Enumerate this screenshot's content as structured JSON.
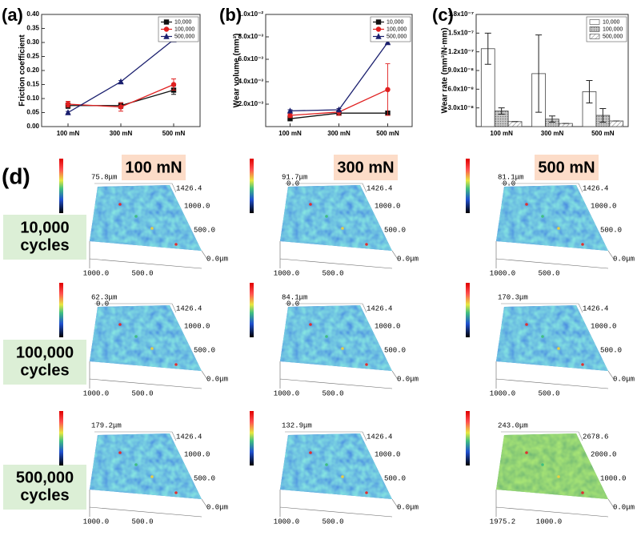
{
  "chart_data": [
    {
      "type": "line",
      "label": "(a)",
      "y_label": "Friction coefficient",
      "categories": [
        "100 mN",
        "300 mN",
        "500 mN"
      ],
      "ylim": [
        0,
        0.4
      ],
      "yticks": [
        {
          "value": 0,
          "label": "0.00"
        },
        {
          "value": 0.05,
          "label": "0.05"
        },
        {
          "value": 0.1,
          "label": "0.10"
        },
        {
          "value": 0.15,
          "label": "0.15"
        },
        {
          "value": 0.2,
          "label": "0.20"
        },
        {
          "value": 0.25,
          "label": "0.25"
        },
        {
          "value": 0.3,
          "label": "0.30"
        },
        {
          "value": 0.35,
          "label": "0.35"
        },
        {
          "value": 0.4,
          "label": "0.40"
        }
      ],
      "legend": "upper right",
      "series": [
        {
          "name": "10,000",
          "color": "#111111",
          "marker": "square",
          "values": [
            0.075,
            0.075,
            0.13
          ],
          "errors": [
            0.01,
            0.01,
            0.015
          ]
        },
        {
          "name": "100,000",
          "color": "#e02020",
          "marker": "circle",
          "values": [
            0.08,
            0.07,
            0.15
          ],
          "errors": [
            0.01,
            0.015,
            0.02
          ]
        },
        {
          "name": "500,000",
          "color": "#1a1f6e",
          "marker": "triangle",
          "values": [
            0.05,
            0.16,
            0.31
          ],
          "errors": [
            0.004,
            0.004,
            0.004
          ]
        }
      ]
    },
    {
      "type": "line",
      "label": "(b)",
      "y_label": "Wear volume (mm³)",
      "categories": [
        "100 mN",
        "300 mN",
        "500 mN"
      ],
      "ylim": [
        0,
        0.01
      ],
      "yticks": [
        {
          "value": 0.002,
          "label": "2.0x10⁻³"
        },
        {
          "value": 0.004,
          "label": "4.0x10⁻³"
        },
        {
          "value": 0.006,
          "label": "6.0x10⁻³"
        },
        {
          "value": 0.008,
          "label": "8.0x10⁻³"
        },
        {
          "value": 0.01,
          "label": "1.0x10⁻²"
        }
      ],
      "legend": "upper right",
      "series": [
        {
          "name": "10,000",
          "color": "#111111",
          "marker": "square",
          "values": [
            0.0007,
            0.0012,
            0.0012
          ],
          "errors": [
            0.0001,
            0.0002,
            0.0002
          ]
        },
        {
          "name": "100,000",
          "color": "#e02020",
          "marker": "circle",
          "values": [
            0.001,
            0.0013,
            0.0033
          ],
          "errors": [
            0.0002,
            0.0003,
            0.0023
          ]
        },
        {
          "name": "500,000",
          "color": "#1a1f6e",
          "marker": "triangle",
          "values": [
            0.0014,
            0.0015,
            0.0075
          ],
          "errors": [
            0.0001,
            0.0001,
            0.0001
          ]
        }
      ]
    },
    {
      "type": "bar",
      "label": "(c)",
      "y_label": "Wear rate (mm³/N·mm)",
      "categories": [
        "100 mN",
        "300 mN",
        "500 mN"
      ],
      "ylim": [
        0,
        1.8e-07
      ],
      "yticks": [
        {
          "value": 3e-08,
          "label": "3.0x10⁻⁸"
        },
        {
          "value": 6e-08,
          "label": "6.0x10⁻⁸"
        },
        {
          "value": 9e-08,
          "label": "9.0x10⁻⁸"
        },
        {
          "value": 1.2e-07,
          "label": "1.2x10⁻⁷"
        },
        {
          "value": 1.5e-07,
          "label": "1.5x10⁻⁷"
        },
        {
          "value": 1.8e-07,
          "label": "1.8x10⁻⁷"
        }
      ],
      "legend": "upper right",
      "series": [
        {
          "name": "10,000",
          "color": "#ffffff",
          "pattern": "none",
          "values": [
            1.25e-07,
            8.5e-08,
            5.6e-08
          ],
          "errors": [
            2.5e-08,
            6.2e-08,
            1.8e-08
          ]
        },
        {
          "name": "100,000",
          "color": "#b8b8b8",
          "pattern": "dots",
          "values": [
            2.5e-08,
            1.2e-08,
            1.8e-08
          ],
          "errors": [
            5e-09,
            5e-09,
            1.1e-08
          ]
        },
        {
          "name": "500,000",
          "color": "#ffffff",
          "pattern": "hatch",
          "values": [
            8e-09,
            5e-09,
            9e-09
          ],
          "errors": [
            0,
            0,
            0
          ]
        }
      ]
    }
  ],
  "surface_panel": {
    "label": "(d)",
    "columns": [
      "100 mN",
      "300 mN",
      "500 mN"
    ],
    "rows": [
      [
        "10,000",
        "cycles"
      ],
      [
        "100,000",
        "cycles"
      ],
      [
        "500,000",
        "cycles"
      ]
    ],
    "tiles": [
      [
        {
          "max_label": "75.8μm",
          "y_labels": [
            "1426.4",
            "1000.0",
            "500.0",
            "0.0μm"
          ],
          "x_labels": [
            "1000.0",
            "500.0"
          ]
        },
        {
          "max_label": "91.7μm",
          "origin": "0.0",
          "y_labels": [
            "1426.4",
            "1000.0",
            "500.0",
            "0.0μm"
          ],
          "x_labels": [
            "1000.0",
            "500.0"
          ]
        },
        {
          "max_label": "81.1μm",
          "origin": "0.0",
          "y_labels": [
            "1426.4",
            "1000.0",
            "500.0",
            "0.0μm"
          ],
          "x_labels": [
            "1000.0",
            "500.0"
          ]
        }
      ],
      [
        {
          "max_label": "62.3μm",
          "origin": "0.0",
          "y_labels": [
            "1426.4",
            "1000.0",
            "500.0",
            "0.0μm"
          ],
          "x_labels": [
            "1000.0",
            "500.0"
          ]
        },
        {
          "max_label": "84.1μm",
          "origin": "0.0",
          "y_labels": [
            "1426.4",
            "1000.0",
            "500.0",
            "0.0μm"
          ],
          "x_labels": [
            "1000.0",
            "500.0"
          ]
        },
        {
          "max_label": "170.3μm",
          "y_labels": [
            "1426.4",
            "1000.0",
            "500.0",
            "0.0μm"
          ],
          "x_labels": [
            "1000.0",
            "500.0"
          ]
        }
      ],
      [
        {
          "max_label": "179.2μm",
          "y_labels": [
            "1426.4",
            "1000.0",
            "500.0",
            "0.0μm"
          ],
          "x_labels": [
            "1000.0",
            "500.0"
          ]
        },
        {
          "max_label": "132.9μm",
          "y_labels": [
            "1426.4",
            "1000.0",
            "500.0",
            "0.0μm"
          ],
          "x_labels": [
            "1000.0",
            "500.0"
          ]
        },
        {
          "max_label": "243.0μm",
          "y_labels": [
            "2678.6",
            "2000.0",
            "1000.0",
            "0.0μm"
          ],
          "x_labels": [
            "1975.2",
            "1000.0"
          ],
          "tone": "green"
        }
      ]
    ]
  }
}
